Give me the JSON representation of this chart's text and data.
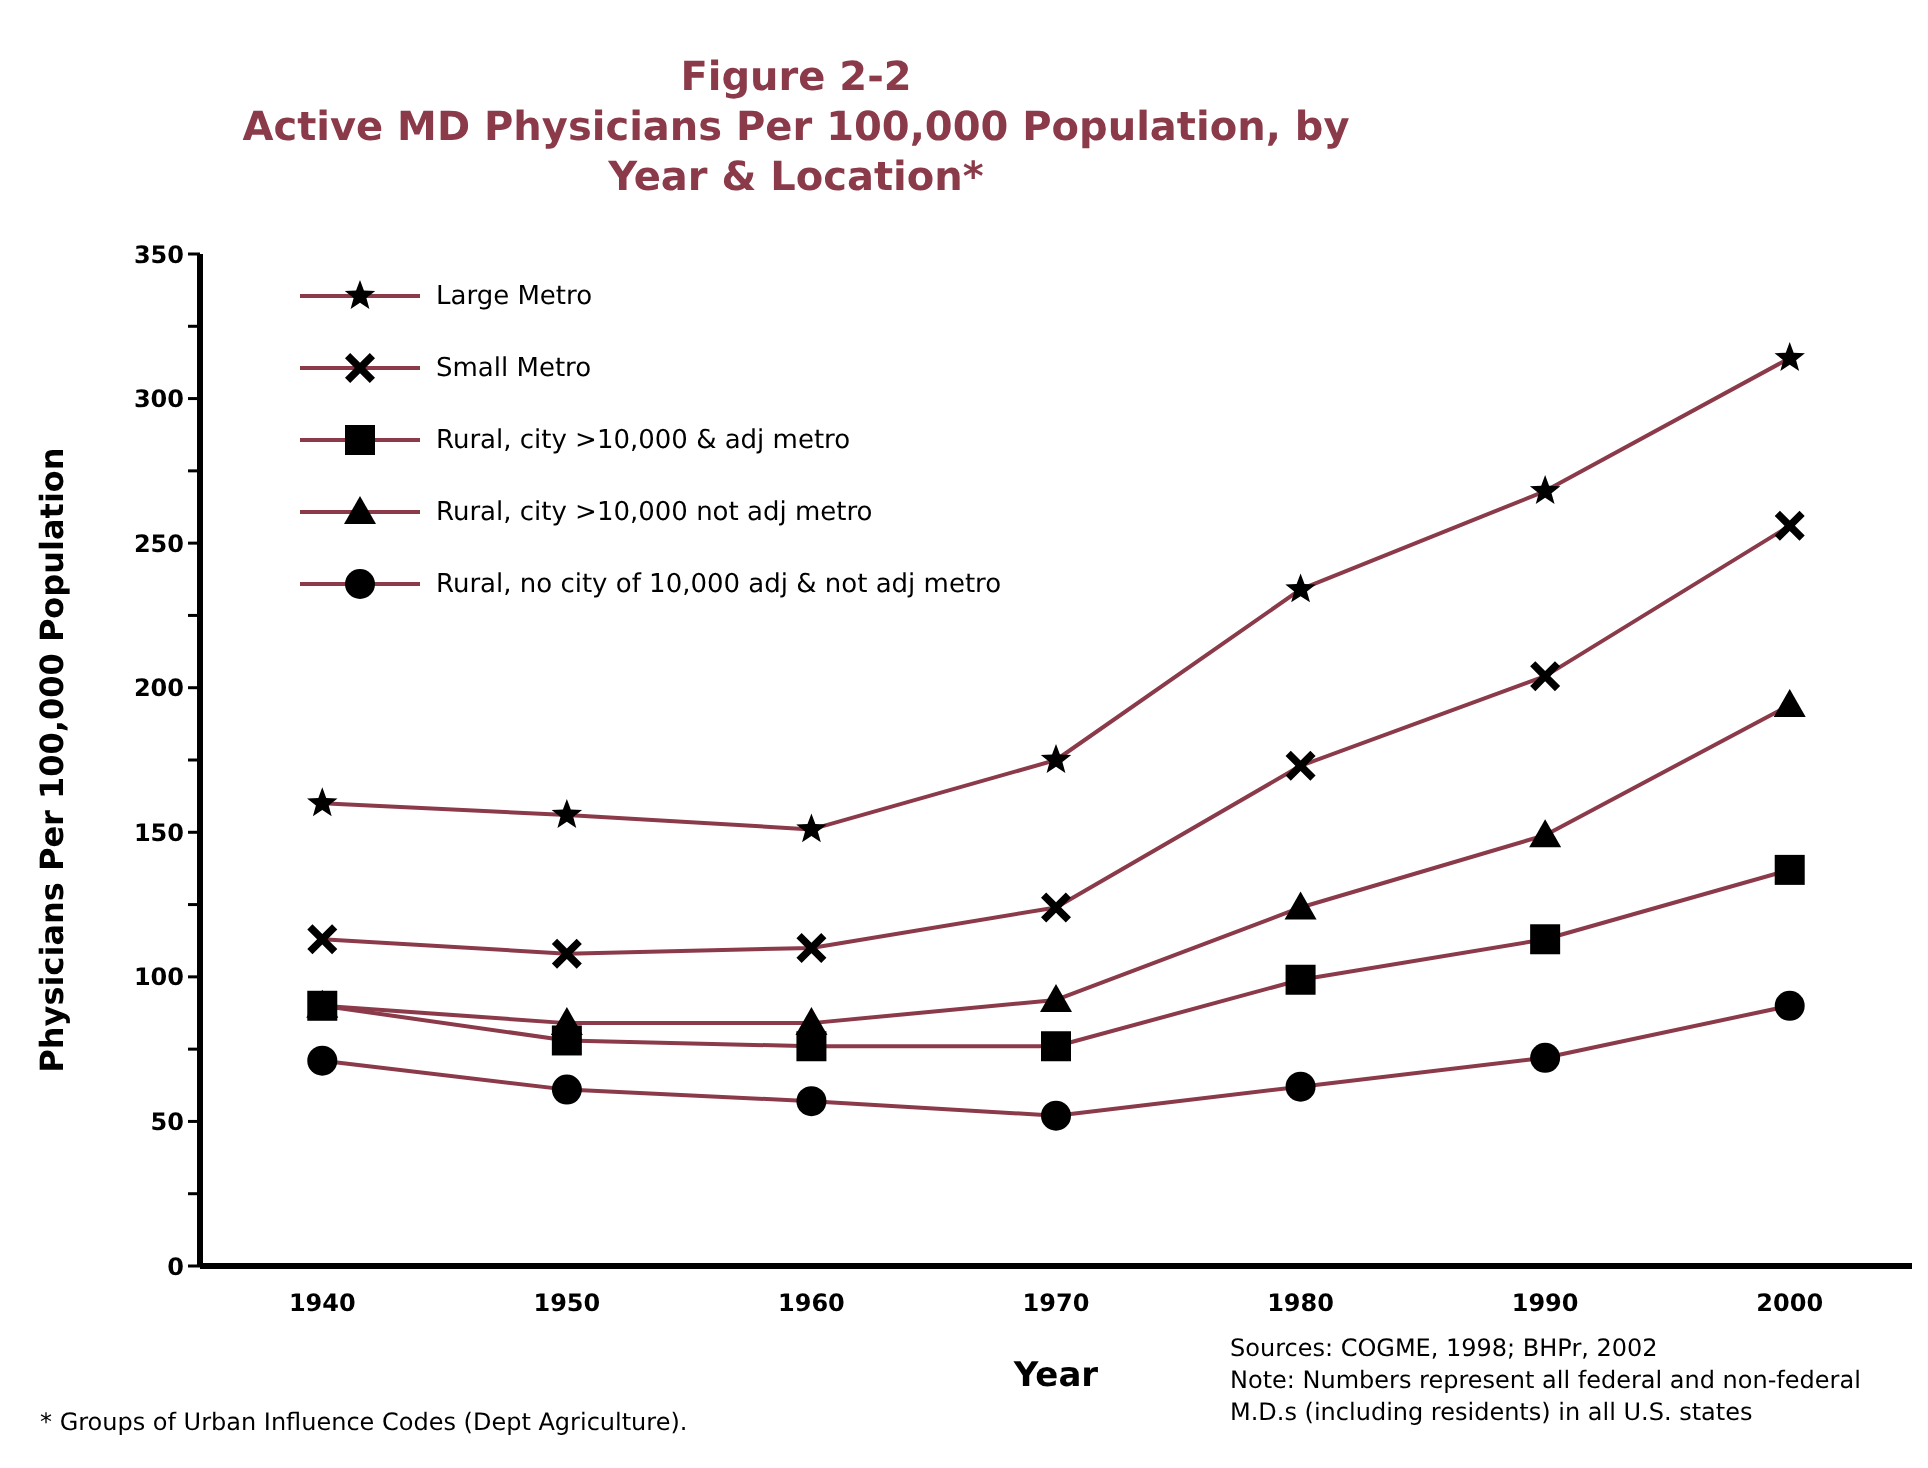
{
  "chart_data": {
    "type": "line",
    "title": "Figure 2-2",
    "subtitle": "Active MD Physicians Per 100,000 Population, by Year & Location*",
    "xlabel": "Year",
    "ylabel": "Physicians Per 100,000 Population",
    "categories": [
      "1940",
      "1950",
      "1960",
      "1970",
      "1980",
      "1990",
      "2000"
    ],
    "series": [
      {
        "name": "Large Metro",
        "color": "#8b3a4a",
        "marker": "star",
        "values": [
          160,
          156,
          151,
          175,
          234,
          268,
          314
        ]
      },
      {
        "name": "Small Metro",
        "color": "#8b3a4a",
        "marker": "cross",
        "values": [
          113,
          108,
          110,
          124,
          173,
          204,
          256
        ]
      },
      {
        "name": "Rural, city >10,000 & adj metro",
        "color": "#8b3a4a",
        "marker": "square",
        "values": [
          90,
          78,
          76,
          76,
          99,
          113,
          137
        ]
      },
      {
        "name": "Rural, city >10,000 not adj metro",
        "color": "#8b3a4a",
        "marker": "triangle",
        "values": [
          90,
          84,
          84,
          92,
          124,
          149,
          194
        ]
      },
      {
        "name": "Rural, no city of 10,000 adj & not adj metro",
        "color": "#8b3a4a",
        "marker": "circle",
        "values": [
          71,
          61,
          57,
          52,
          62,
          72,
          90
        ]
      }
    ],
    "ylim": [
      0,
      350
    ],
    "yticks": [
      0,
      {
        "value": 25,
        "label": null
      },
      50,
      {
        "value": 75,
        "label": null
      },
      100,
      {
        "value": 125,
        "label": null
      },
      150,
      {
        "value": 175,
        "label": null
      },
      200,
      {
        "value": 225,
        "label": null
      },
      250,
      {
        "value": 275,
        "label": null
      },
      300,
      {
        "value": 325,
        "label": null
      },
      350
    ],
    "grid": false,
    "legend": "top left",
    "line_style": "solid",
    "annotations": [
      "Sources: COGME, 1998; BHPr, 2002",
      "Note: Numbers represent all federal and non-federal M.D.s (including residents) in all U.S. states",
      "* Groups of Urban Influence Codes (Dept Agriculture)."
    ]
  }
}
